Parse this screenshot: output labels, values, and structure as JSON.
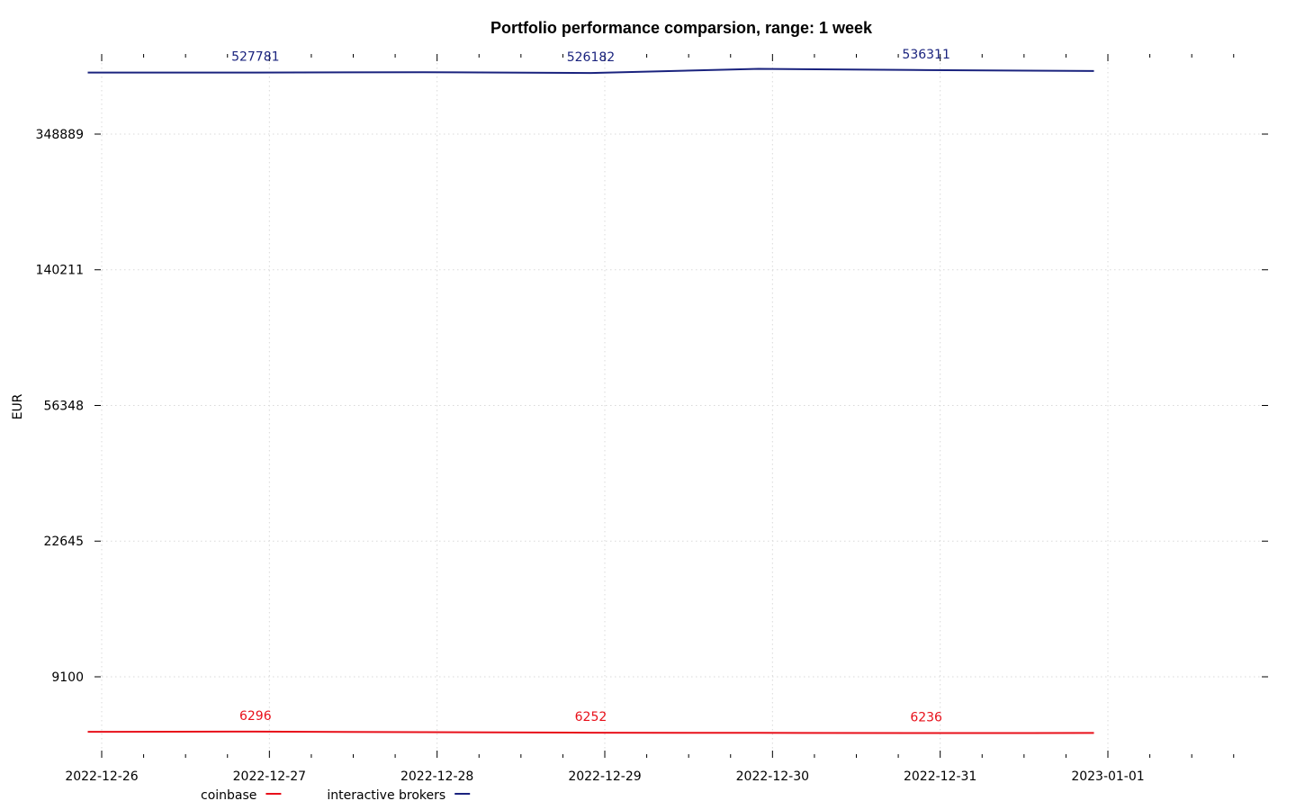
{
  "chart_data": {
    "type": "line",
    "title": "Portfolio performance comparsion, range: 1 week",
    "xlabel": "",
    "ylabel": "EUR",
    "y_scale": "log",
    "grid": true,
    "legend_position": "bottom-left",
    "x_ticks": [
      "2022-12-26",
      "2022-12-27",
      "2022-12-28",
      "2022-12-29",
      "2022-12-30",
      "2022-12-31",
      "2023-01-01"
    ],
    "y_ticks": [
      9100,
      22645,
      56348,
      140211,
      348889
    ],
    "x_range": [
      "2022-12-26",
      "2023-01-01"
    ],
    "series": [
      {
        "name": "coinbase",
        "color": "#e8101a",
        "x": [
          "2022-12-25 22:00",
          "2022-12-26 22:00",
          "2022-12-27 22:00",
          "2022-12-28 22:00",
          "2022-12-29 22:00",
          "2022-12-30 22:00",
          "2022-12-31 22:00"
        ],
        "y": [
          6290,
          6296,
          6275,
          6252,
          6245,
          6236,
          6240
        ],
        "labels": [
          {
            "x": "2022-12-26 22:00",
            "y": 6296,
            "text": "6296"
          },
          {
            "x": "2022-12-28 22:00",
            "y": 6252,
            "text": "6252"
          },
          {
            "x": "2022-12-30 22:00",
            "y": 6236,
            "text": "6236"
          }
        ]
      },
      {
        "name": "interactive brokers",
        "color": "#1a237e",
        "x": [
          "2022-12-25 22:00",
          "2022-12-26 22:00",
          "2022-12-27 22:00",
          "2022-12-28 22:00",
          "2022-12-29 22:00",
          "2022-12-30 22:00",
          "2022-12-31 22:00"
        ],
        "y": [
          527500,
          527781,
          528900,
          526182,
          541000,
          536311,
          533000
        ],
        "labels": [
          {
            "x": "2022-12-26 22:00",
            "y": 527781,
            "text": "527781"
          },
          {
            "x": "2022-12-28 22:00",
            "y": 526182,
            "text": "526182"
          },
          {
            "x": "2022-12-30 22:00",
            "y": 536311,
            "text": "536311"
          }
        ]
      }
    ]
  }
}
